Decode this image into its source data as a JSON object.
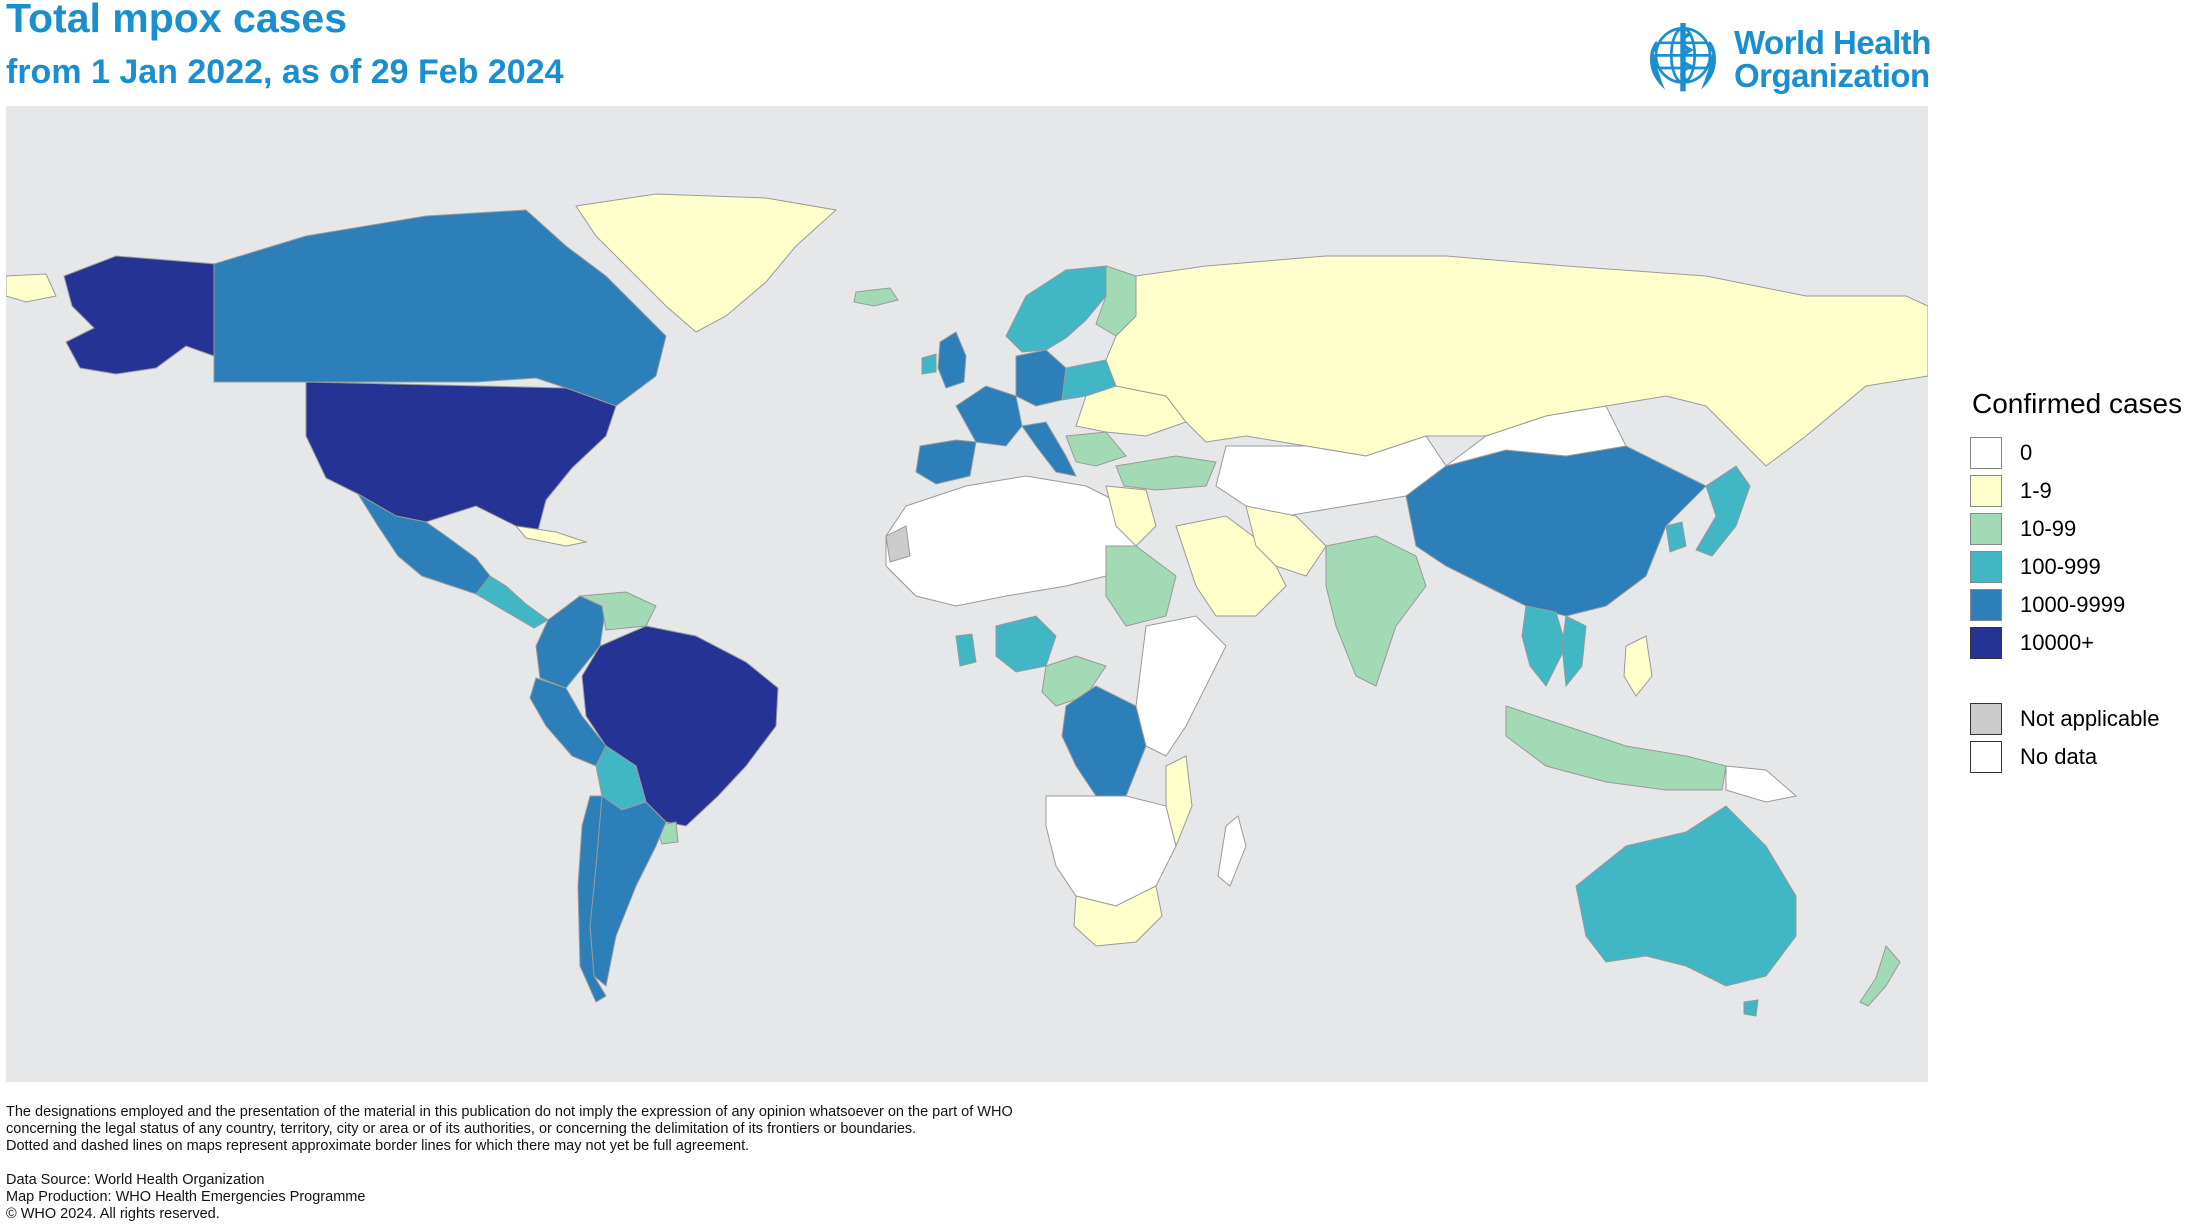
{
  "header": {
    "title": "Total mpox cases",
    "subtitle": "from 1 Jan 2022, as of 29 Feb 2024"
  },
  "logo": {
    "line1": "World Health",
    "line2": "Organization",
    "icon": "who-emblem-icon",
    "color": "#1a8fcf"
  },
  "legend": {
    "title": "Confirmed cases",
    "bins": [
      {
        "label": "0",
        "color": "#ffffff"
      },
      {
        "label": "1-9",
        "color": "#ffffcc"
      },
      {
        "label": "10-99",
        "color": "#a1dab4"
      },
      {
        "label": "100-999",
        "color": "#41b6c4"
      },
      {
        "label": "1000-9999",
        "color": "#2c7fb8"
      },
      {
        "label": "10000+",
        "color": "#253494"
      }
    ],
    "extra": [
      {
        "label": "Not applicable",
        "color": "#cccccc"
      },
      {
        "label": "No data",
        "color": "#ffffff"
      }
    ]
  },
  "map": {
    "ocean_color": "#e5e7e9",
    "regions": [
      {
        "name": "Canada",
        "bin": "1000-9999"
      },
      {
        "name": "United States",
        "bin": "10000+"
      },
      {
        "name": "Alaska",
        "bin": "10000+"
      },
      {
        "name": "Mexico",
        "bin": "1000-9999"
      },
      {
        "name": "Greenland",
        "bin": "1-9"
      },
      {
        "name": "Brazil",
        "bin": "10000+"
      },
      {
        "name": "Colombia",
        "bin": "1000-9999"
      },
      {
        "name": "Peru",
        "bin": "1000-9999"
      },
      {
        "name": "Bolivia",
        "bin": "100-999"
      },
      {
        "name": "Argentina",
        "bin": "1000-9999"
      },
      {
        "name": "Chile",
        "bin": "1000-9999"
      },
      {
        "name": "Venezuela",
        "bin": "10-99"
      },
      {
        "name": "Russia",
        "bin": "1-9"
      },
      {
        "name": "China",
        "bin": "1000-9999"
      },
      {
        "name": "India",
        "bin": "10-99"
      },
      {
        "name": "Australia",
        "bin": "100-999"
      },
      {
        "name": "Democratic Republic of the Congo",
        "bin": "1000-9999"
      },
      {
        "name": "Nigeria",
        "bin": "100-999"
      },
      {
        "name": "Spain",
        "bin": "1000-9999"
      },
      {
        "name": "Germany",
        "bin": "1000-9999"
      },
      {
        "name": "United Kingdom",
        "bin": "1000-9999"
      },
      {
        "name": "Japan",
        "bin": "100-999"
      },
      {
        "name": "Thailand",
        "bin": "100-999"
      },
      {
        "name": "New Zealand",
        "bin": "10-99"
      },
      {
        "name": "Sudan",
        "bin": "10-99"
      },
      {
        "name": "Saudi Arabia",
        "bin": "1-9"
      },
      {
        "name": "Turkey",
        "bin": "10-99"
      },
      {
        "name": "South Africa",
        "bin": "1-9"
      },
      {
        "name": "Indonesia",
        "bin": "10-99"
      }
    ]
  },
  "footer": {
    "disclaimer_1": "The designations employed and the presentation of the material in this publication do not imply the expression of any opinion whatsoever on the part of WHO",
    "disclaimer_2": "concerning the legal status of any country, territory, city or area or of its authorities, or concerning the delimitation of its frontiers or boundaries.",
    "disclaimer_3": "Dotted and dashed lines on maps represent approximate border lines for which there may not yet be full agreement.",
    "source": "Data Source: World Health Organization",
    "production": "Map Production: WHO Health Emergencies Programme",
    "copyright": "© WHO 2024. All rights reserved."
  }
}
